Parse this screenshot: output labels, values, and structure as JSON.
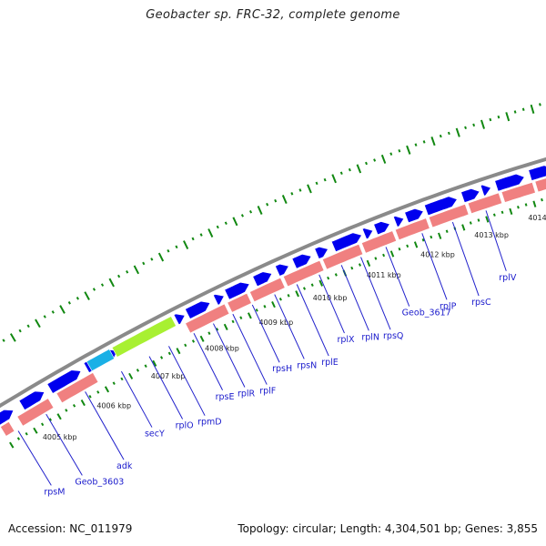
{
  "title": "Geobacter sp. FRC-32, complete genome",
  "accession": "Accession: NC_011979",
  "summary": "Topology: circular; Length: 4,304,501 bp; Genes: 3,855",
  "colors": {
    "backbone": "#8a8a8a",
    "forward_strand": "#0000ee",
    "reverse_strand": "#f08080",
    "highlight_cyan": "#1ab0e6",
    "highlight_green": "#a8f032",
    "outer_ticks": "#118811",
    "label_text": "#1a1acc",
    "leader_line": "#2222cc"
  },
  "kbp_ticks": [
    "4005 kbp",
    "4006 kbp",
    "4007 kbp",
    "4008 kbp",
    "4009 kbp",
    "4010 kbp",
    "4011 kbp",
    "4012 kbp",
    "4013 kbp",
    "4014 kbp"
  ],
  "genes": [
    "rpsM",
    "Geob_3603",
    "adk",
    "secY",
    "rplO",
    "rpmD",
    "rpsE",
    "rplR",
    "rplF",
    "rpsH",
    "rpsN",
    "rplE",
    "rplX",
    "rplN",
    "rpsQ",
    "Geob_3617",
    "rplP",
    "rpsC",
    "rplV"
  ]
}
